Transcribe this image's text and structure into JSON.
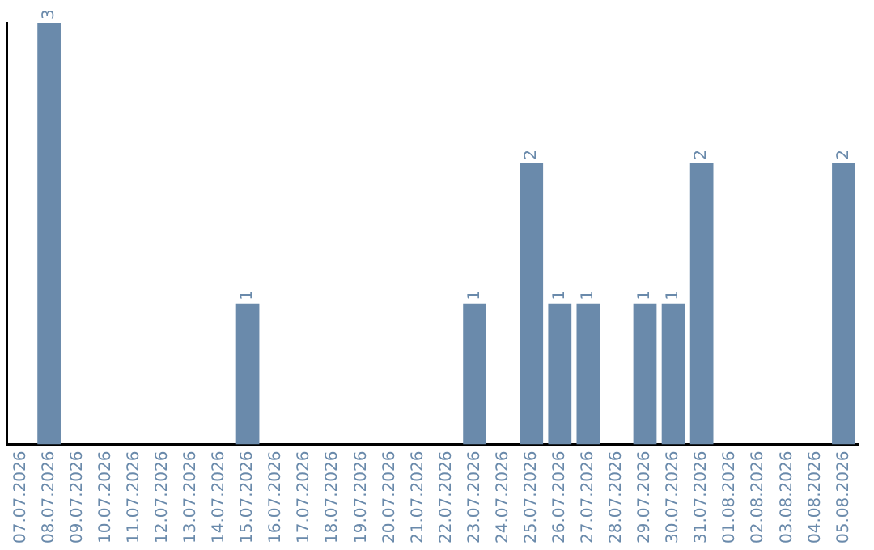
{
  "chart_data": {
    "type": "bar",
    "categories": [
      "07.07.2026",
      "08.07.2026",
      "09.07.2026",
      "10.07.2026",
      "11.07.2026",
      "12.07.2026",
      "13.07.2026",
      "14.07.2026",
      "15.07.2026",
      "16.07.2026",
      "17.07.2026",
      "18.07.2026",
      "19.07.2026",
      "20.07.2026",
      "21.07.2026",
      "22.07.2026",
      "23.07.2026",
      "24.07.2026",
      "25.07.2026",
      "26.07.2026",
      "27.07.2026",
      "28.07.2026",
      "29.07.2026",
      "30.07.2026",
      "31.07.2026",
      "01.08.2026",
      "02.08.2026",
      "03.08.2026",
      "04.08.2026",
      "05.08.2026"
    ],
    "values": [
      0,
      3,
      0,
      0,
      0,
      0,
      0,
      0,
      1,
      0,
      0,
      0,
      0,
      0,
      0,
      0,
      1,
      0,
      2,
      1,
      1,
      0,
      1,
      1,
      2,
      0,
      0,
      0,
      0,
      2
    ],
    "value_labels": [
      null,
      "3",
      null,
      null,
      null,
      null,
      null,
      null,
      "1",
      null,
      null,
      null,
      null,
      null,
      null,
      null,
      "1",
      null,
      "2",
      "1",
      "1",
      null,
      "1",
      "1",
      "2",
      null,
      null,
      null,
      null,
      "2"
    ],
    "color": "#6a8aab",
    "tick_labels": "x",
    "grid": false,
    "legend": false
  }
}
